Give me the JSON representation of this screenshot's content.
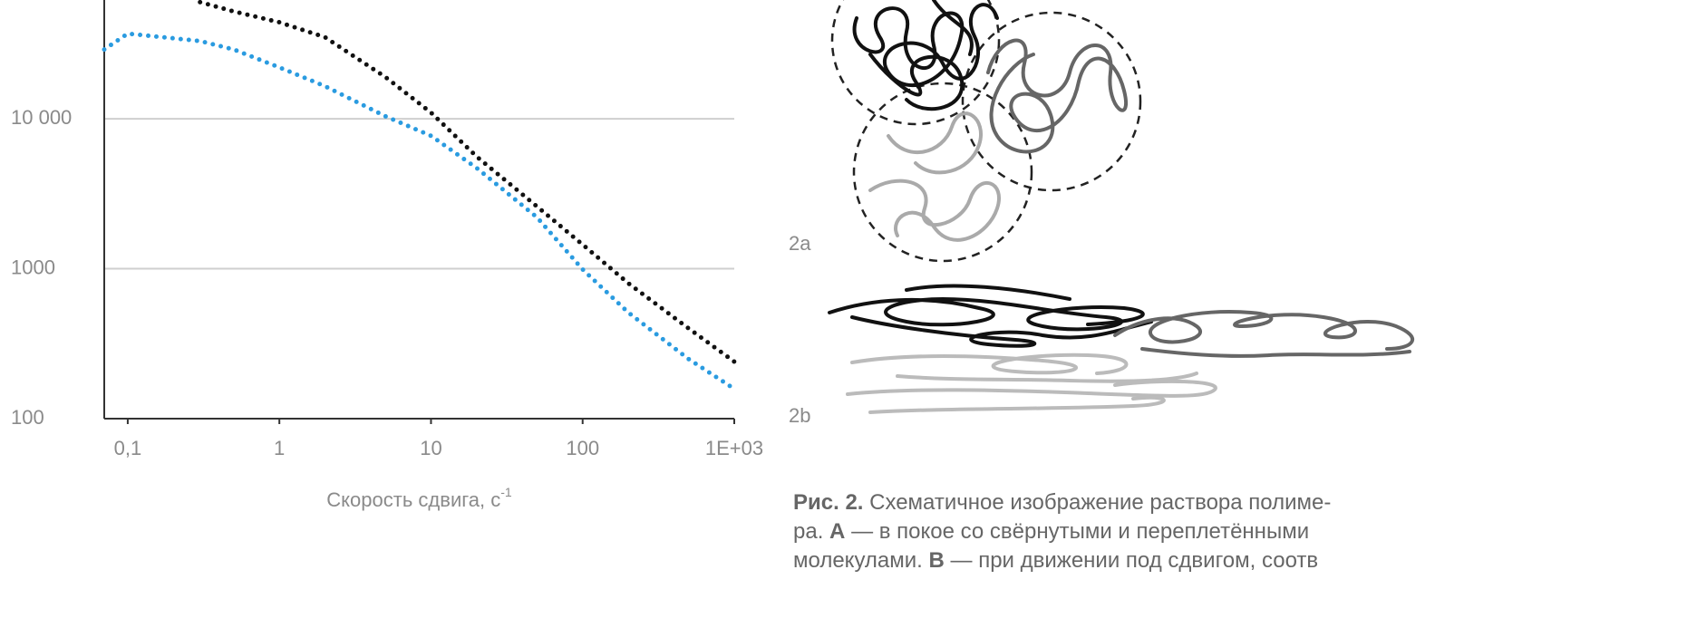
{
  "chart_data": {
    "type": "line",
    "x_label": "Скорость сдвига, с",
    "x_label_superscript": "-1",
    "x": [
      0.07,
      0.1,
      0.3,
      0.5,
      1,
      2,
      5,
      10,
      20,
      50,
      100,
      200,
      500,
      1000
    ],
    "series": [
      {
        "color": "#111111",
        "values": [
          null,
          null,
          60000,
          52000,
          44000,
          35000,
          19000,
          11000,
          5600,
          2600,
          1450,
          800,
          400,
          240
        ]
      },
      {
        "color": "#2a9be0",
        "values": [
          29000,
          37000,
          33000,
          29000,
          22000,
          16500,
          10400,
          7700,
          4700,
          2200,
          990,
          510,
          250,
          158
        ]
      }
    ],
    "xlim": [
      0.07,
      1000
    ],
    "ylim": [
      100,
      62000
    ],
    "log_x": true,
    "log_y": true,
    "grid": true,
    "xticks": [
      {
        "value": 0.1,
        "label": "0,1"
      },
      1,
      10,
      100,
      {
        "value": 1000,
        "label": "1E+03"
      }
    ],
    "yticks": [
      100,
      1000,
      {
        "value": 10000,
        "label": "10 000"
      }
    ]
  },
  "figure": {
    "labels": [
      "2a",
      "2b"
    ],
    "caption": {
      "number": "Рис. 2.",
      "line1": "Схематичное изображение раствора полиме-",
      "line2_start": "ра.",
      "a": "А",
      "line2_end": "— в покое со свёрнутыми и переплетёнными",
      "line3_start": "молекулами.",
      "b": "В",
      "line3_end": "— при движении под сдвигом, соотв"
    }
  }
}
